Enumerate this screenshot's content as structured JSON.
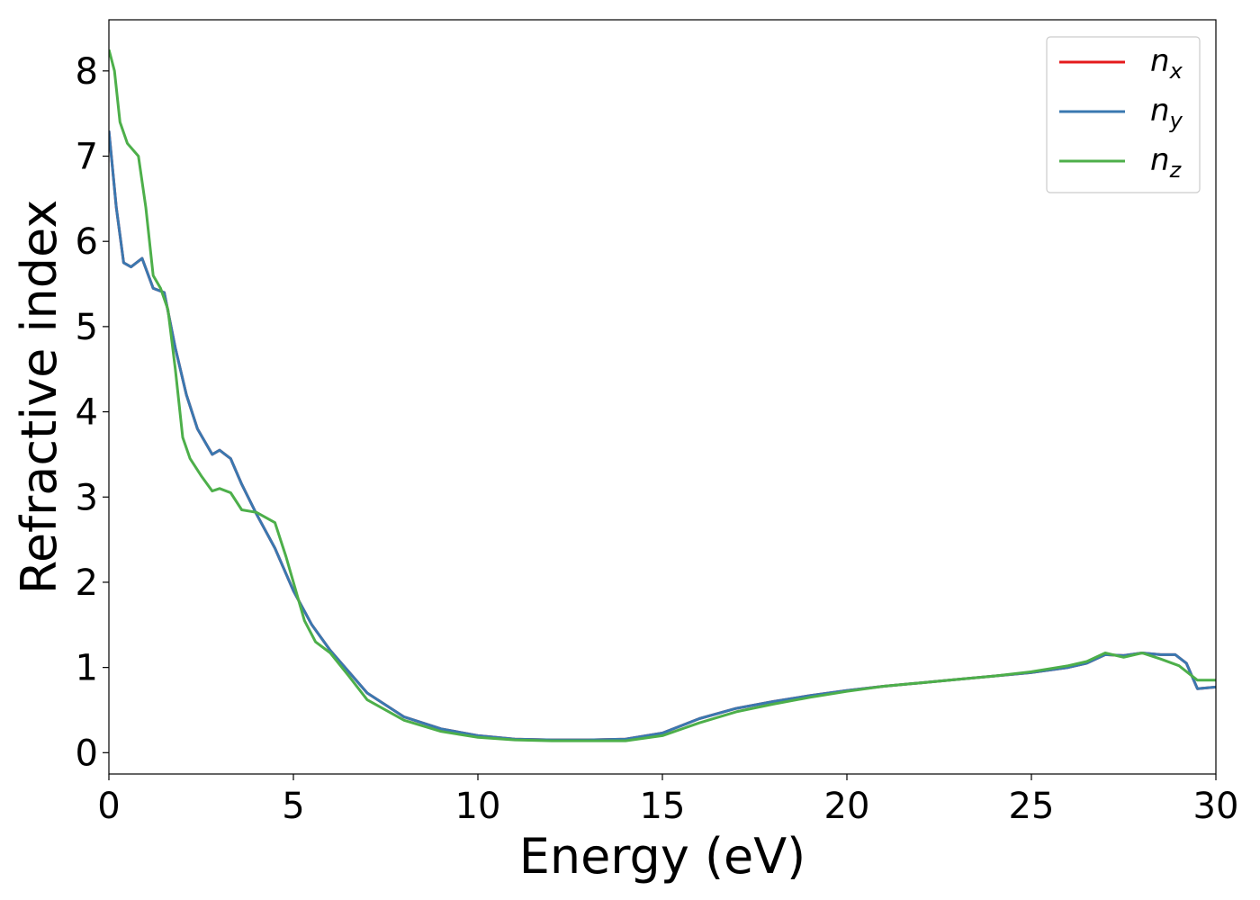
{
  "chart_data": {
    "type": "line",
    "title": "",
    "xlabel": "Energy (eV)",
    "ylabel": "Refractive index",
    "xlim": [
      0,
      30
    ],
    "ylim": [
      -0.25,
      8.6
    ],
    "xticks": [
      0,
      5,
      10,
      15,
      20,
      25,
      30
    ],
    "yticks": [
      0,
      1,
      2,
      3,
      4,
      5,
      6,
      7,
      8
    ],
    "grid": false,
    "legend_position": "top-right",
    "series": [
      {
        "name": "n_x",
        "label_base": "n",
        "label_sub": "x",
        "color": "#e41a1c",
        "x": [
          0,
          0.2,
          0.4,
          0.6,
          0.9,
          1.2,
          1.5,
          1.8,
          2.1,
          2.4,
          2.8,
          3.0,
          3.3,
          3.6,
          4.0,
          4.5,
          5.0,
          5.5,
          6.0,
          6.5,
          7.0,
          8.0,
          9.0,
          10.0,
          11.0,
          12.0,
          13.0,
          14.0,
          15.0,
          16.0,
          17.0,
          18.0,
          19.0,
          20.0,
          21.0,
          22.0,
          23.0,
          24.0,
          25.0,
          26.0,
          26.5,
          27.0,
          27.5,
          28.0,
          28.5,
          28.9,
          29.2,
          29.5,
          30.0
        ],
        "y": [
          7.3,
          6.4,
          5.75,
          5.7,
          5.8,
          5.45,
          5.4,
          4.75,
          4.2,
          3.8,
          3.5,
          3.55,
          3.45,
          3.15,
          2.8,
          2.4,
          1.9,
          1.5,
          1.2,
          0.95,
          0.7,
          0.42,
          0.28,
          0.2,
          0.16,
          0.15,
          0.15,
          0.16,
          0.23,
          0.4,
          0.52,
          0.6,
          0.67,
          0.73,
          0.78,
          0.82,
          0.86,
          0.9,
          0.94,
          1.0,
          1.05,
          1.15,
          1.14,
          1.17,
          1.15,
          1.15,
          1.05,
          0.75,
          0.77
        ]
      },
      {
        "name": "n_y",
        "label_base": "n",
        "label_sub": "y",
        "color": "#3a78b0",
        "x": [
          0,
          0.2,
          0.4,
          0.6,
          0.9,
          1.2,
          1.5,
          1.8,
          2.1,
          2.4,
          2.8,
          3.0,
          3.3,
          3.6,
          4.0,
          4.5,
          5.0,
          5.5,
          6.0,
          6.5,
          7.0,
          8.0,
          9.0,
          10.0,
          11.0,
          12.0,
          13.0,
          14.0,
          15.0,
          16.0,
          17.0,
          18.0,
          19.0,
          20.0,
          21.0,
          22.0,
          23.0,
          24.0,
          25.0,
          26.0,
          26.5,
          27.0,
          27.5,
          28.0,
          28.5,
          28.9,
          29.2,
          29.5,
          30.0
        ],
        "y": [
          7.3,
          6.4,
          5.75,
          5.7,
          5.8,
          5.45,
          5.4,
          4.75,
          4.2,
          3.8,
          3.5,
          3.55,
          3.45,
          3.15,
          2.8,
          2.4,
          1.9,
          1.5,
          1.2,
          0.95,
          0.7,
          0.42,
          0.28,
          0.2,
          0.16,
          0.15,
          0.15,
          0.16,
          0.23,
          0.4,
          0.52,
          0.6,
          0.67,
          0.73,
          0.78,
          0.82,
          0.86,
          0.9,
          0.94,
          1.0,
          1.05,
          1.15,
          1.14,
          1.17,
          1.15,
          1.15,
          1.05,
          0.75,
          0.77
        ]
      },
      {
        "name": "n_z",
        "label_base": "n",
        "label_sub": "z",
        "color": "#4daf4a",
        "x": [
          0,
          0.15,
          0.3,
          0.5,
          0.8,
          1.0,
          1.2,
          1.4,
          1.6,
          1.8,
          2.0,
          2.2,
          2.5,
          2.8,
          3.0,
          3.3,
          3.6,
          4.0,
          4.5,
          4.8,
          5.0,
          5.3,
          5.6,
          6.0,
          6.5,
          7.0,
          8.0,
          9.0,
          10.0,
          11.0,
          12.0,
          13.0,
          14.0,
          15.0,
          16.0,
          17.0,
          18.0,
          19.0,
          20.0,
          21.0,
          22.0,
          23.0,
          24.0,
          25.0,
          26.0,
          26.5,
          27.0,
          27.5,
          28.0,
          28.5,
          29.0,
          29.5,
          30.0
        ],
        "y": [
          8.25,
          8.0,
          7.4,
          7.15,
          7.0,
          6.4,
          5.6,
          5.45,
          5.2,
          4.5,
          3.7,
          3.45,
          3.25,
          3.07,
          3.1,
          3.05,
          2.85,
          2.82,
          2.7,
          2.3,
          2.0,
          1.55,
          1.3,
          1.17,
          0.9,
          0.62,
          0.38,
          0.25,
          0.18,
          0.15,
          0.14,
          0.14,
          0.14,
          0.2,
          0.35,
          0.48,
          0.57,
          0.65,
          0.72,
          0.78,
          0.82,
          0.86,
          0.9,
          0.95,
          1.02,
          1.07,
          1.17,
          1.12,
          1.17,
          1.1,
          1.02,
          0.85,
          0.85
        ]
      }
    ]
  }
}
